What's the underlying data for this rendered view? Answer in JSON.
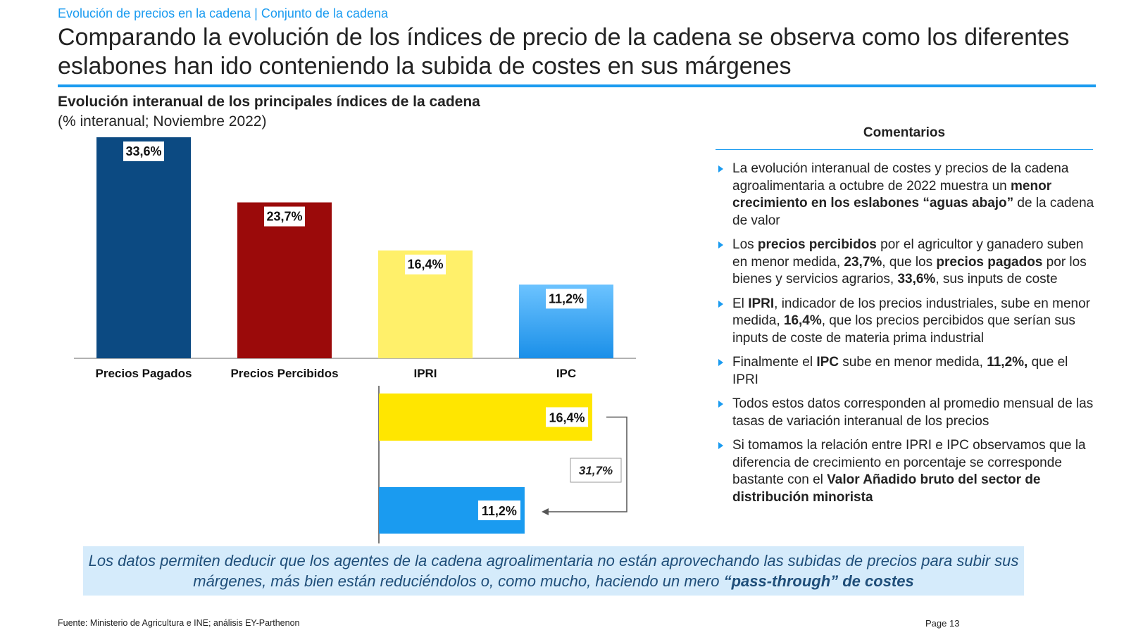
{
  "header": {
    "section": "Evolución de precios en la cadena | Conjunto de la cadena",
    "headline": "Comparando la evolución de los índices de precio de la cadena se observa como los diferentes eslabones han ido conteniendo la subida de costes en sus márgenes"
  },
  "chart_data": [
    {
      "type": "bar",
      "title": "Evolución interanual de los principales índices de la cadena",
      "subtitle": "(% interanual; Noviembre 2022)",
      "categories": [
        "Precios Pagados",
        "Precios Percibidos",
        "IPRI",
        "IPC"
      ],
      "values": [
        33.6,
        23.7,
        16.4,
        11.2
      ],
      "value_labels": [
        "33,6%",
        "23,7%",
        "16,4%",
        "11,2%"
      ],
      "colors": [
        "#0c4a82",
        "#9b0a0a",
        "#fff06a",
        "#1a9bf0"
      ],
      "ylim": [
        0,
        33.6
      ]
    },
    {
      "type": "bar",
      "orientation": "horizontal",
      "categories": [
        "IPRI",
        "IPC"
      ],
      "values": [
        16.4,
        11.2
      ],
      "value_labels": [
        "16,4%",
        "11,2%"
      ],
      "colors": [
        "#ffe600",
        "#1a9bf0"
      ],
      "difference_label": "31,7%",
      "xlim": [
        0,
        16.4
      ]
    }
  ],
  "comments": {
    "title": "Comentarios",
    "items": [
      [
        {
          "t": "La evolución interanual de costes y precios de la cadena agroalimentaria a octubre de 2022 muestra un "
        },
        {
          "t": "menor crecimiento en los eslabones “aguas abajo”",
          "b": true
        },
        {
          "t": " de la cadena de valor"
        }
      ],
      [
        {
          "t": "Los "
        },
        {
          "t": "precios percibidos",
          "b": true
        },
        {
          "t": " por el agricultor y ganadero suben en menor medida, "
        },
        {
          "t": "23,7%",
          "b": true
        },
        {
          "t": ", que los "
        },
        {
          "t": "precios pagados",
          "b": true
        },
        {
          "t": " por los bienes y servicios agrarios, "
        },
        {
          "t": "33,6%",
          "b": true
        },
        {
          "t": ", sus inputs de coste"
        }
      ],
      [
        {
          "t": "El "
        },
        {
          "t": "IPRI",
          "b": true
        },
        {
          "t": ", indicador de los precios industriales, sube en menor medida, "
        },
        {
          "t": "16,4%",
          "b": true
        },
        {
          "t": ", que los precios percibidos que serían sus inputs de coste de materia prima industrial"
        }
      ],
      [
        {
          "t": "Finalmente el "
        },
        {
          "t": "IPC",
          "b": true
        },
        {
          "t": " sube en menor medida, "
        },
        {
          "t": "11,2%,",
          "b": true
        },
        {
          "t": " que el IPRI"
        }
      ],
      [
        {
          "t": "Todos estos datos corresponden al promedio mensual de las tasas de variación interanual de los precios"
        }
      ],
      [
        {
          "t": "Si tomamos la relación entre IPRI e IPC observamos que la diferencia de crecimiento en porcentaje se corresponde bastante con el "
        },
        {
          "t": "Valor Añadido bruto del sector de distribución minorista",
          "b": true
        }
      ]
    ]
  },
  "conclusion": [
    {
      "t": "Los datos permiten deducir que los agentes de la cadena agroalimentaria no están aprovechando las subidas de precios para subir sus márgenes, más bien están reduciéndolos o, como mucho, haciendo un mero "
    },
    {
      "t": "“pass-through” de costes",
      "b": true
    }
  ],
  "footer": {
    "source": "Fuente: Ministerio de Agricultura e INE; análisis EY-Parthenon",
    "page": "Page 13"
  }
}
